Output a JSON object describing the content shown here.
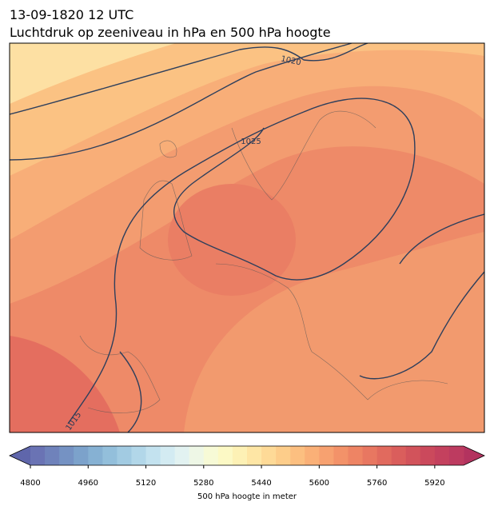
{
  "map": {
    "title": "13-09-1820 12 UTC",
    "subtitle": "Luchtdruk op zeeniveau in hPa en 500 hPa hoogte",
    "contour_labels": [
      1020,
      1025,
      1015
    ],
    "colorbar": {
      "label": "500 hPa hoogte in meter",
      "range": [
        4800,
        6000
      ],
      "ticks": [
        4800,
        4960,
        5120,
        5280,
        5440,
        5600,
        5760,
        5920
      ],
      "colors": [
        "#6a73b4",
        "#6f82bb",
        "#7592c3",
        "#7ca2cb",
        "#86b1d3",
        "#93bfdb",
        "#a2cbe2",
        "#b2d7e9",
        "#c3e2ef",
        "#d3ebf2",
        "#e2f2f1",
        "#eef7e6",
        "#f7fad6",
        "#fcf9c5",
        "#fdf1b5",
        "#fee6a5",
        "#feda97",
        "#fdcd8a",
        "#fcbf80",
        "#fab077",
        "#f7a170",
        "#f39269",
        "#ee8464",
        "#e87761",
        "#e16a5e",
        "#da5e5c",
        "#d2535b",
        "#cb495c",
        "#c4415e",
        "#bd3b60"
      ],
      "under_color": "#5f66ab",
      "over_color": "#b3335f"
    }
  }
}
